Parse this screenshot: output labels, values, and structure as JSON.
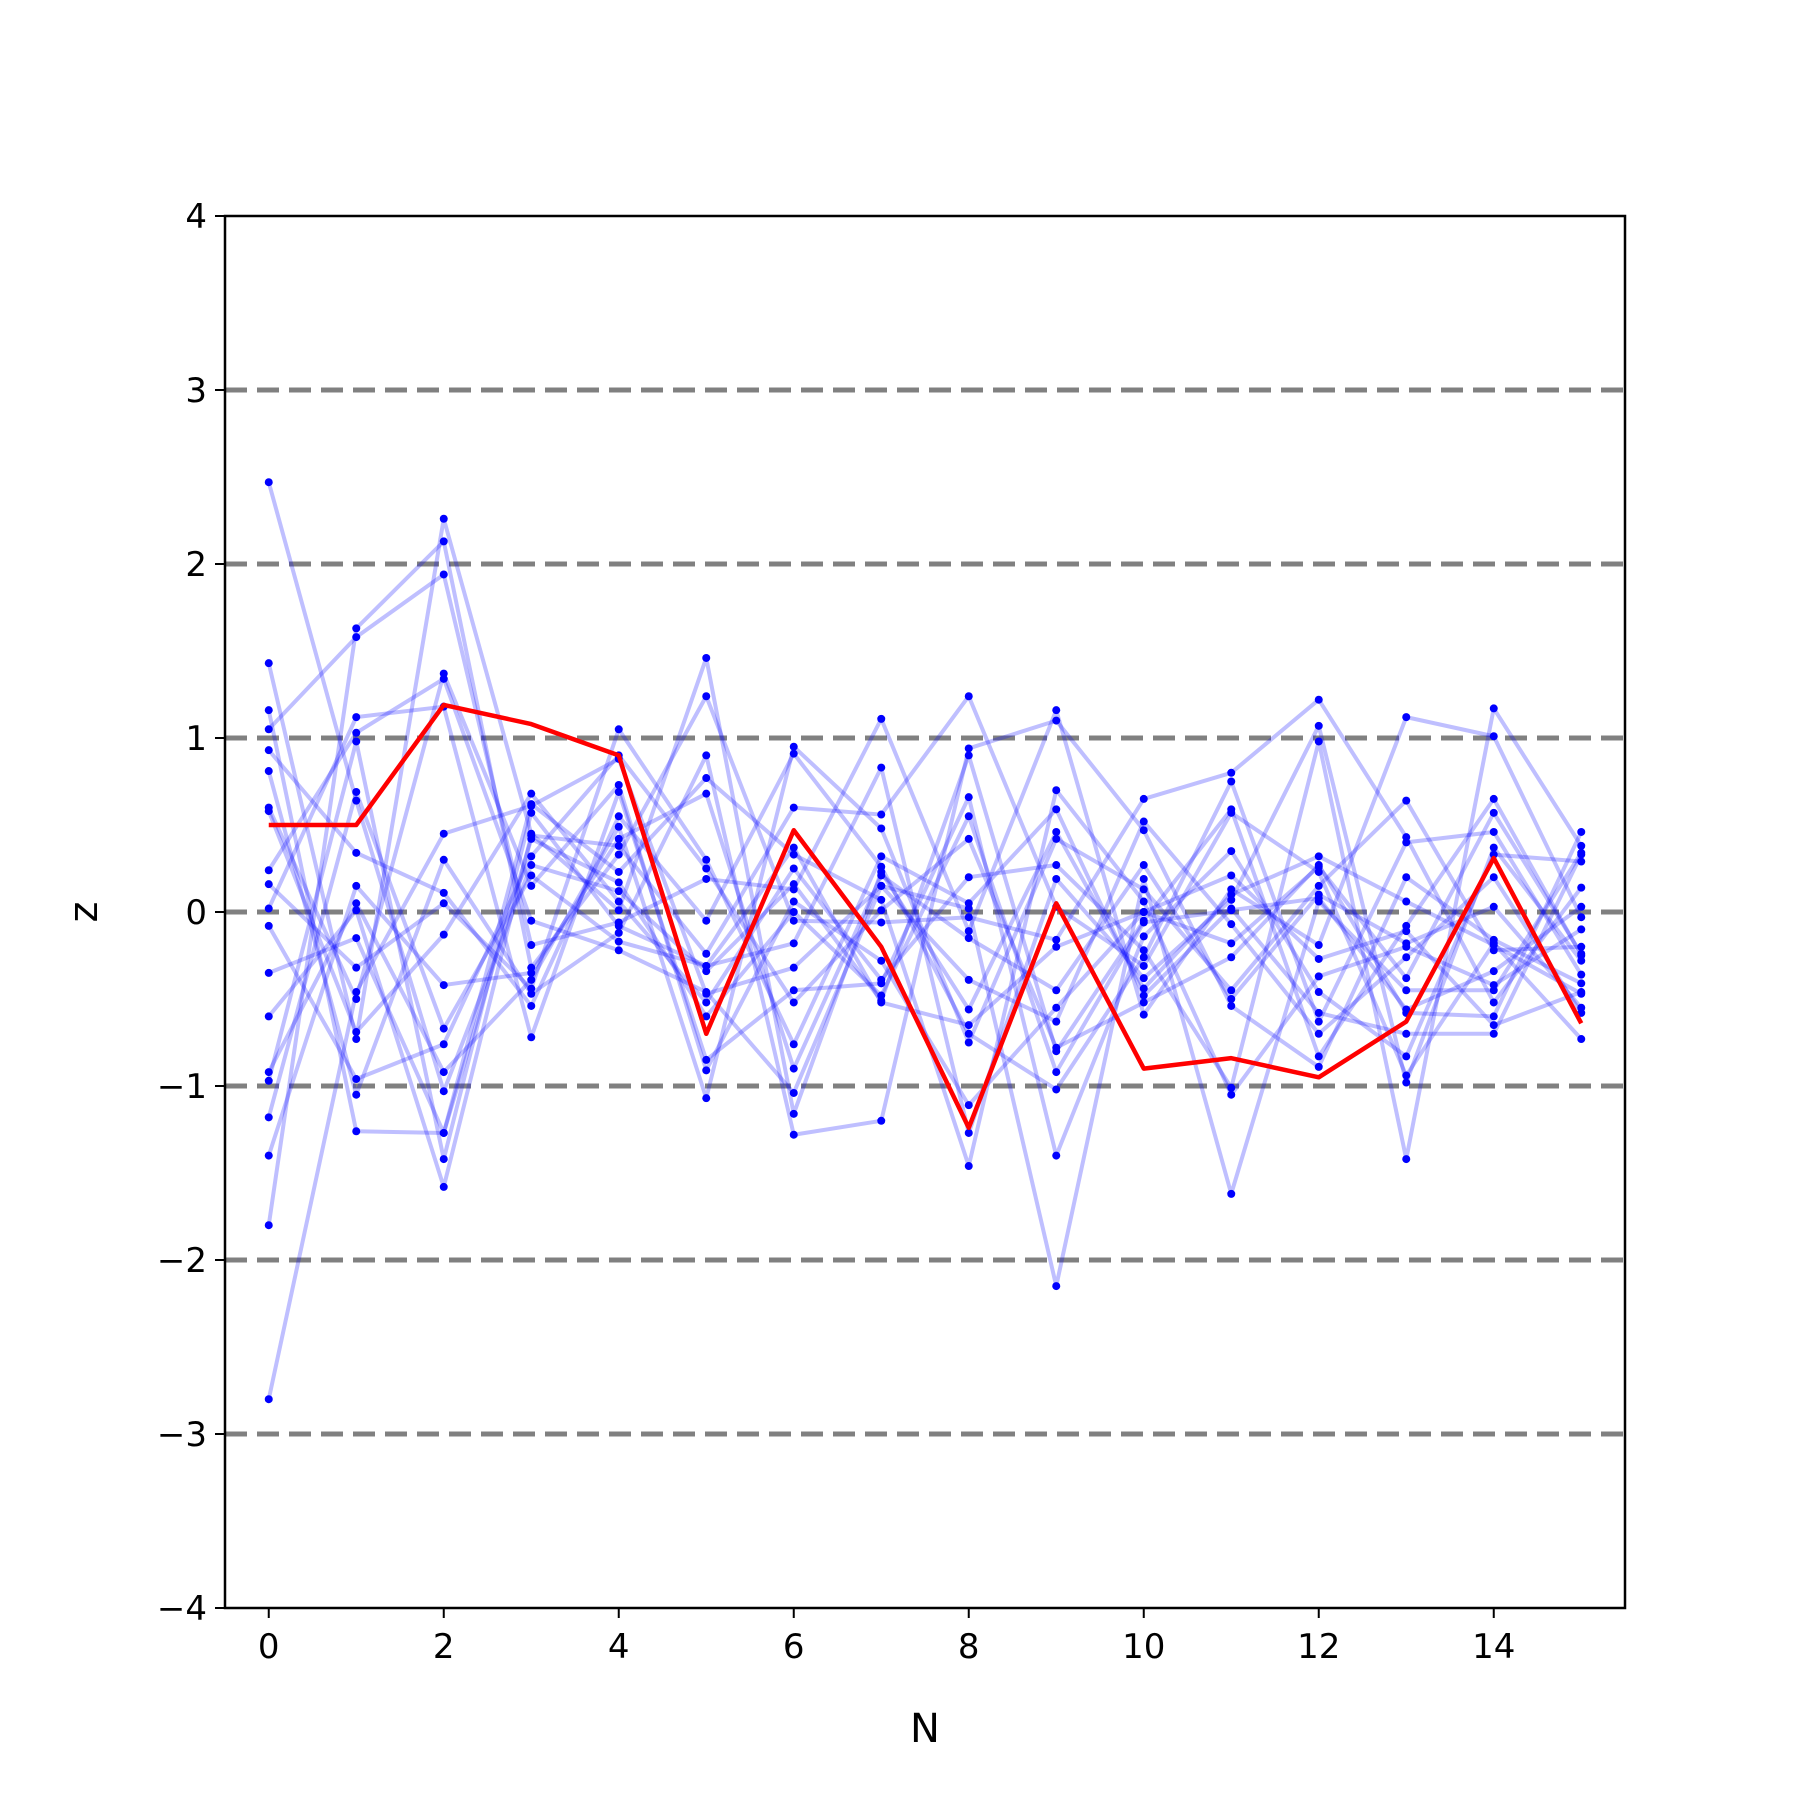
{
  "chart_data": {
    "type": "line",
    "title": "",
    "xlabel": "N",
    "ylabel": "z",
    "xlim": [
      -0.5,
      15.5
    ],
    "ylim": [
      -4,
      4
    ],
    "x": [
      0,
      1,
      2,
      3,
      4,
      5,
      6,
      7,
      8,
      9,
      10,
      11,
      12,
      13,
      14,
      15
    ],
    "x_ticks": [
      0,
      2,
      4,
      6,
      8,
      10,
      12,
      14
    ],
    "x_tick_labels": [
      "0",
      "2",
      "4",
      "6",
      "8",
      "10",
      "12",
      "14"
    ],
    "y_ticks": [
      -4,
      -3,
      -2,
      -1,
      0,
      1,
      2,
      3,
      4
    ],
    "y_tick_labels": [
      "−4",
      "−3",
      "−2",
      "−1",
      "0",
      "1",
      "2",
      "3",
      "4"
    ],
    "reference_lines": [
      -3,
      -2,
      -1,
      0,
      1,
      2,
      3
    ],
    "grid": false,
    "legend": "none",
    "colors": {
      "highlight": "#ff0000",
      "samples": "#0000ff",
      "reference": "#808080",
      "axes": "#000000"
    },
    "highlight_series": {
      "values": [
        0.5,
        0.5,
        1.19,
        1.08,
        0.9,
        -0.7,
        0.47,
        -0.2,
        -1.24,
        0.05,
        -0.9,
        -0.84,
        -0.95,
        -0.63,
        0.31,
        -0.64
      ]
    },
    "sample_series": [
      {
        "values": [
          2.47,
          0.64,
          -1.03,
          0.27,
          0.12,
          -0.34,
          0.16,
          -0.51,
          0.9,
          -0.8,
          -0.05,
          0.59,
          -0.83,
          -0.08,
          0.65,
          -0.25
        ]
      },
      {
        "values": [
          -2.8,
          -0.46,
          0.45,
          0.61,
          0.88,
          -0.47,
          -0.32,
          0.15,
          0.02,
          -2.15,
          0.19,
          -1.62,
          0.06,
          -0.45,
          -0.45,
          0.34
        ]
      },
      {
        "values": [
          1.43,
          -0.73,
          2.26,
          0.45,
          0.01,
          1.46,
          -1.16,
          0.23,
          -0.56,
          0.46,
          -0.44,
          0.1,
          0.32,
          0.06,
          -0.19,
          -0.47
        ]
      },
      {
        "values": [
          1.16,
          -1.26,
          -1.27,
          0.62,
          0.23,
          0.77,
          0.33,
          0.07,
          -1.46,
          0.7,
          0.06,
          -1.05,
          -0.37,
          -0.2,
          -0.42,
          -0.1
        ]
      },
      {
        "values": [
          -1.8,
          1.63,
          2.13,
          -0.32,
          0.33,
          1.24,
          -0.05,
          -0.06,
          -0.03,
          -0.16,
          0.65,
          0.8,
          1.22,
          0.43,
          -0.52,
          0.14
        ]
      },
      {
        "values": [
          1.05,
          1.58,
          1.94,
          -0.19,
          -0.06,
          0.19,
          0.13,
          1.11,
          -0.11,
          1.16,
          -0.59,
          0.13,
          -0.19,
          1.12,
          1.01,
          -0.03
        ]
      },
      {
        "values": [
          -0.6,
          0.01,
          -1.58,
          0.44,
          0.38,
          -0.24,
          0.6,
          0.56,
          1.24,
          0.03,
          -0.31,
          0.57,
          0.23,
          -0.94,
          -0.18,
          -0.73
        ]
      },
      {
        "values": [
          0.81,
          -1.05,
          0.3,
          -0.47,
          -0.12,
          0.9,
          -1.28,
          -1.2,
          0.94,
          1.1,
          0.47,
          -0.54,
          -0.89,
          0.2,
          -0.16,
          -0.41
        ]
      },
      {
        "values": [
          0.02,
          1.12,
          1.18,
          -0.72,
          0.69,
          -0.85,
          -0.45,
          -0.41,
          0.66,
          -1.4,
          -0.14,
          0.35,
          -0.46,
          -0.83,
          0.33,
          0.29
        ]
      },
      {
        "values": [
          0.58,
          -0.69,
          -0.13,
          0.68,
          0.06,
          -0.52,
          0.25,
          -0.39,
          0.2,
          0.27,
          -0.22,
          -1.01,
          0.98,
          -1.42,
          1.17,
          0.38
        ]
      },
      {
        "values": [
          -0.92,
          0.05,
          -0.92,
          -0.39,
          0.49,
          -1.07,
          0.95,
          0.48,
          -0.75,
          0.42,
          0.13,
          -0.45,
          0.15,
          0.64,
          -0.22,
          -0.2
        ]
      },
      {
        "values": [
          -1.18,
          0.69,
          -0.67,
          0.21,
          -0.17,
          -0.31,
          -0.18,
          0.83,
          -1.27,
          0.19,
          -0.38,
          0.07,
          1.07,
          -0.98,
          0.37,
          -0.28
        ]
      },
      {
        "values": [
          0.93,
          0.34,
          0.11,
          -0.54,
          0.55,
          -0.05,
          0.91,
          0.26,
          -0.7,
          -1.02,
          -0.26,
          0.75,
          -0.63,
          0.4,
          0.46,
          -0.36
        ]
      },
      {
        "values": [
          -0.08,
          -0.96,
          -0.76,
          0.32,
          0.9,
          0.25,
          -0.52,
          0.01,
          0.42,
          -0.78,
          -0.52,
          -0.26,
          0.27,
          -0.58,
          -0.6,
          0.46
        ]
      },
      {
        "values": [
          0.24,
          1.03,
          1.34,
          -0.05,
          -0.22,
          -0.46,
          -1.04,
          0.15,
          -0.39,
          -0.63,
          0.52,
          -0.07,
          -0.7,
          -0.26,
          0.2,
          -0.58
        ]
      },
      {
        "values": [
          -0.35,
          -0.15,
          -1.27,
          0.42,
          0.17,
          -0.6,
          0.0,
          -0.48,
          0.55,
          -0.92,
          -0.06,
          0.01,
          0.08,
          -0.56,
          -0.34,
          0.03
        ]
      },
      {
        "values": [
          0.6,
          -0.5,
          1.37,
          0.15,
          0.73,
          -0.91,
          0.06,
          -0.28,
          -1.11,
          -0.55,
          0.0,
          0.21,
          -0.27,
          -0.11,
          -0.65,
          -0.46
        ]
      },
      {
        "values": [
          -1.4,
          0.15,
          -0.42,
          -0.35,
          0.42,
          0.68,
          -0.9,
          0.21,
          -0.15,
          -0.45,
          0.27,
          -0.5,
          0.1,
          -0.18,
          0.03,
          -0.55
        ]
      },
      {
        "values": [
          0.16,
          -0.32,
          0.05,
          -0.44,
          1.05,
          0.3,
          -0.76,
          0.32,
          0.05,
          0.59,
          -0.48,
          0.02,
          -0.58,
          -0.7,
          -0.7,
          0.33
        ]
      },
      {
        "values": [
          -0.97,
          0.98,
          -1.42,
          0.57,
          -0.08,
          -0.31,
          0.37,
          -0.52,
          -0.65,
          -0.2,
          0.0,
          -0.18,
          0.26,
          -0.38,
          0.57,
          -0.24
        ]
      }
    ]
  }
}
